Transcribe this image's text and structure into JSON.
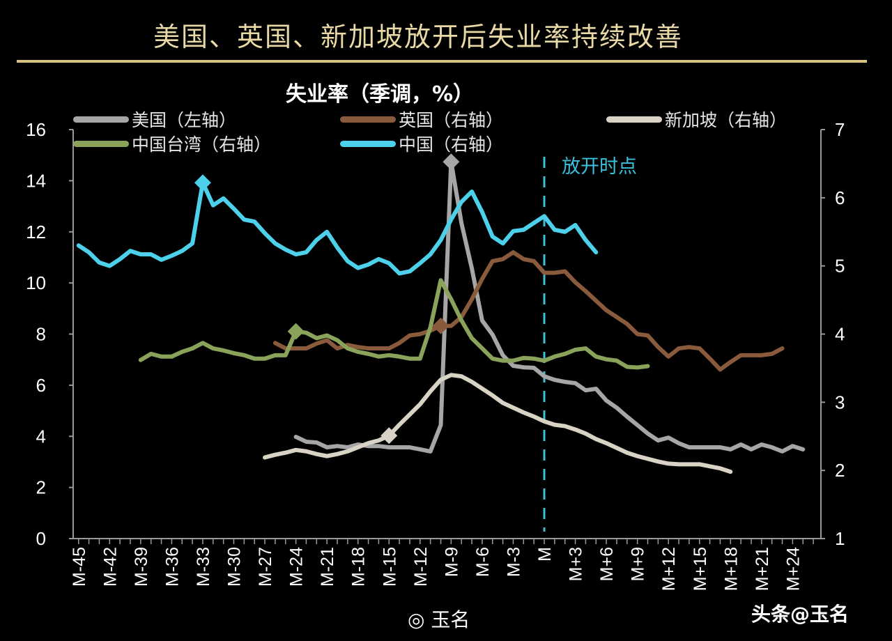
{
  "title": "美国、英国、新加坡放开后失业率持续改善",
  "chart_data": {
    "type": "line",
    "title": "失业率（季调，%）",
    "x_ticks": [
      "M-45",
      "M-42",
      "M-39",
      "M-36",
      "M-33",
      "M-30",
      "M-27",
      "M-24",
      "M-21",
      "M-18",
      "M-15",
      "M-12",
      "M-9",
      "M-6",
      "M-3",
      "M",
      "M+3",
      "M+6",
      "M+9",
      "M+12",
      "M+15",
      "M+18",
      "M+21",
      "M+24"
    ],
    "x_range_months": [
      -45,
      26
    ],
    "y_left": {
      "range": [
        0,
        16
      ],
      "ticks": [
        0,
        2,
        4,
        6,
        8,
        10,
        12,
        14,
        16
      ]
    },
    "y_right": {
      "range": [
        1,
        7
      ],
      "ticks": [
        1,
        2,
        3,
        4,
        5,
        6,
        7
      ]
    },
    "grid": false,
    "legend_placement": "top",
    "annotation": {
      "label": "放开时点",
      "x": 0,
      "color": "#3cc0dc"
    },
    "series": [
      {
        "name": "美国（左轴）",
        "axis": "left",
        "color": "#a6a6a6",
        "marker_x": -9,
        "start": -24,
        "values": [
          3.98,
          3.79,
          3.76,
          3.57,
          3.62,
          3.57,
          3.68,
          3.62,
          3.62,
          3.57,
          3.57,
          3.57,
          3.49,
          3.41,
          4.44,
          14.74,
          12.34,
          10.57,
          8.53,
          7.98,
          7.17,
          6.76,
          6.7,
          6.68,
          6.35,
          6.21,
          6.13,
          6.08,
          5.8,
          5.86,
          5.4,
          5.12,
          4.77,
          4.44,
          4.11,
          3.84,
          3.95,
          3.73,
          3.57,
          3.57,
          3.57,
          3.57,
          3.49,
          3.68,
          3.49,
          3.68,
          3.57,
          3.41,
          3.62,
          3.49
        ]
      },
      {
        "name": "英国（右轴）",
        "axis": "right",
        "color": "#8a5a3c",
        "marker_x": -10,
        "start": -26,
        "values": [
          3.87,
          3.79,
          3.79,
          3.79,
          3.86,
          3.91,
          3.79,
          3.84,
          3.81,
          3.79,
          3.79,
          3.79,
          3.87,
          3.98,
          4.0,
          4.05,
          4.12,
          4.12,
          4.25,
          4.51,
          4.81,
          5.07,
          5.1,
          5.2,
          5.1,
          5.07,
          4.9,
          4.9,
          4.92,
          4.76,
          4.63,
          4.49,
          4.35,
          4.25,
          4.15,
          4.0,
          3.98,
          3.81,
          3.67,
          3.79,
          3.81,
          3.79,
          3.64,
          3.48,
          3.59,
          3.69,
          3.69,
          3.69,
          3.71,
          3.79
        ]
      },
      {
        "name": "新加坡（右轴）",
        "axis": "right",
        "color": "#d8d3c4",
        "marker_x": -15,
        "start": -27,
        "values": [
          2.19,
          2.23,
          2.26,
          2.3,
          2.28,
          2.24,
          2.21,
          2.24,
          2.28,
          2.34,
          2.4,
          2.44,
          2.51,
          2.67,
          2.82,
          2.97,
          3.16,
          3.33,
          3.4,
          3.38,
          3.3,
          3.2,
          3.1,
          2.99,
          2.92,
          2.85,
          2.79,
          2.72,
          2.67,
          2.65,
          2.6,
          2.54,
          2.46,
          2.4,
          2.33,
          2.26,
          2.21,
          2.17,
          2.13,
          2.1,
          2.09,
          2.09,
          2.09,
          2.06,
          2.03,
          1.98
        ]
      },
      {
        "name": "中国台湾（右轴）",
        "axis": "right",
        "color": "#8aa35a",
        "marker_x": -24,
        "start": -39,
        "values": [
          3.62,
          3.71,
          3.67,
          3.67,
          3.74,
          3.79,
          3.87,
          3.79,
          3.76,
          3.72,
          3.69,
          3.64,
          3.64,
          3.69,
          3.69,
          4.04,
          4.02,
          3.94,
          3.98,
          3.91,
          3.79,
          3.74,
          3.71,
          3.67,
          3.69,
          3.67,
          3.64,
          3.64,
          4.1,
          4.79,
          4.51,
          4.2,
          3.94,
          3.79,
          3.64,
          3.61,
          3.61,
          3.65,
          3.64,
          3.61,
          3.67,
          3.71,
          3.77,
          3.79,
          3.67,
          3.63,
          3.61,
          3.52,
          3.51,
          3.53
        ]
      },
      {
        "name": "中国（右轴）",
        "axis": "right",
        "color": "#4dd0ea",
        "marker_x": -33,
        "start": -45,
        "values": [
          5.3,
          5.2,
          5.05,
          5.0,
          5.1,
          5.22,
          5.17,
          5.17,
          5.09,
          5.15,
          5.22,
          5.33,
          6.22,
          5.89,
          5.99,
          5.84,
          5.68,
          5.65,
          5.48,
          5.33,
          5.24,
          5.17,
          5.2,
          5.38,
          5.5,
          5.27,
          5.07,
          4.97,
          5.02,
          5.1,
          5.04,
          4.89,
          4.92,
          5.04,
          5.17,
          5.38,
          5.68,
          5.94,
          6.09,
          5.79,
          5.43,
          5.33,
          5.51,
          5.53,
          5.63,
          5.73,
          5.53,
          5.5,
          5.6,
          5.38,
          5.2
        ]
      }
    ]
  },
  "watermarks": {
    "weibo": "玉名",
    "toutiao": "头条@玉名"
  }
}
